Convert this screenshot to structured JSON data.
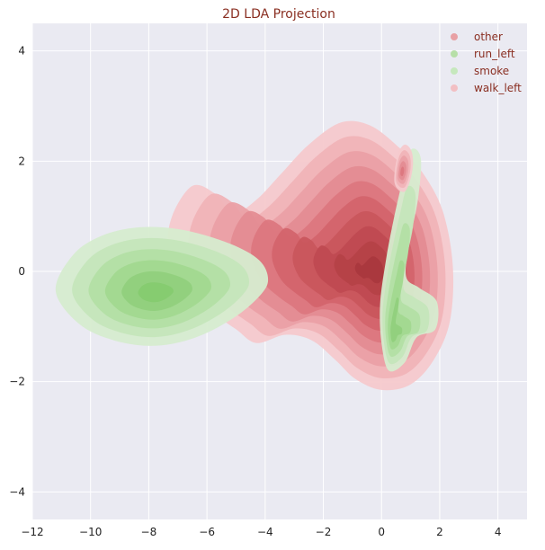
{
  "chart_data": {
    "type": "kde-contour",
    "title": "2D LDA Projection",
    "xlabel": "",
    "ylabel": "",
    "xlim": [
      -12,
      5
    ],
    "ylim": [
      -4.5,
      4.5
    ],
    "xticks": [
      -12,
      -10,
      -8,
      -6,
      -4,
      -2,
      0,
      2,
      4
    ],
    "yticks": [
      -4,
      -2,
      0,
      2,
      4
    ],
    "grid": true,
    "legend_position": "top-right",
    "legend": [
      {
        "name": "other",
        "color": "#e8a0a4"
      },
      {
        "name": "run_left",
        "color": "#b7dfa8"
      },
      {
        "name": "smoke",
        "color": "#c6e8bd"
      },
      {
        "name": "walk_left",
        "color": "#f2bfc3"
      }
    ],
    "series": [
      {
        "name": "walk_left",
        "kind": "red",
        "density_center": [
          -0.2,
          0.0
        ],
        "levels": 10,
        "outer_contour": [
          [
            -7.2,
            1.0
          ],
          [
            -6.5,
            1.55
          ],
          [
            -5.7,
            1.4
          ],
          [
            -5.1,
            1.05
          ],
          [
            -4.3,
            1.3
          ],
          [
            -3.4,
            1.8
          ],
          [
            -2.5,
            2.3
          ],
          [
            -1.4,
            2.7
          ],
          [
            -0.4,
            2.65
          ],
          [
            0.6,
            2.25
          ],
          [
            1.4,
            1.8
          ],
          [
            2.1,
            1.1
          ],
          [
            2.45,
            0.1
          ],
          [
            2.35,
            -0.9
          ],
          [
            1.8,
            -1.6
          ],
          [
            1.0,
            -2.05
          ],
          [
            0.0,
            -2.15
          ],
          [
            -0.9,
            -1.95
          ],
          [
            -1.6,
            -1.6
          ],
          [
            -2.4,
            -1.25
          ],
          [
            -3.3,
            -1.15
          ],
          [
            -4.3,
            -1.3
          ],
          [
            -5.0,
            -1.05
          ],
          [
            -5.8,
            -0.75
          ],
          [
            -6.7,
            -0.3
          ],
          [
            -7.3,
            0.4
          ]
        ]
      },
      {
        "name": "run_left",
        "kind": "green",
        "density_center": [
          -7.8,
          -0.4
        ],
        "levels": 6,
        "outer_contour": [
          [
            -11.2,
            -0.35
          ],
          [
            -10.6,
            0.3
          ],
          [
            -9.6,
            0.65
          ],
          [
            -8.3,
            0.8
          ],
          [
            -6.8,
            0.75
          ],
          [
            -5.2,
            0.5
          ],
          [
            -4.2,
            0.2
          ],
          [
            -3.9,
            -0.15
          ],
          [
            -4.2,
            -0.45
          ],
          [
            -5.1,
            -0.85
          ],
          [
            -6.4,
            -1.2
          ],
          [
            -7.8,
            -1.35
          ],
          [
            -9.2,
            -1.25
          ],
          [
            -10.4,
            -0.95
          ]
        ]
      },
      {
        "name": "smoke",
        "kind": "green",
        "density_center": [
          0.4,
          -1.15
        ],
        "levels": 5,
        "outer_contour": [
          [
            0.25,
            -1.8
          ],
          [
            0.0,
            -1.3
          ],
          [
            -0.05,
            -0.6
          ],
          [
            0.15,
            0.2
          ],
          [
            0.4,
            0.9
          ],
          [
            0.7,
            1.6
          ],
          [
            1.0,
            2.2
          ],
          [
            1.35,
            2.05
          ],
          [
            1.25,
            1.3
          ],
          [
            0.95,
            0.5
          ],
          [
            0.85,
            -0.1
          ],
          [
            1.3,
            -0.3
          ],
          [
            1.9,
            -0.55
          ],
          [
            1.85,
            -1.05
          ],
          [
            1.2,
            -1.2
          ],
          [
            0.8,
            -1.65
          ]
        ]
      },
      {
        "name": "other",
        "kind": "red",
        "density_center": [
          0.7,
          1.8
        ],
        "levels": 5,
        "outer_contour": [
          [
            0.45,
            1.6
          ],
          [
            0.55,
            2.1
          ],
          [
            0.8,
            2.3
          ],
          [
            1.05,
            2.15
          ],
          [
            1.05,
            1.8
          ],
          [
            0.8,
            1.45
          ]
        ]
      }
    ]
  }
}
